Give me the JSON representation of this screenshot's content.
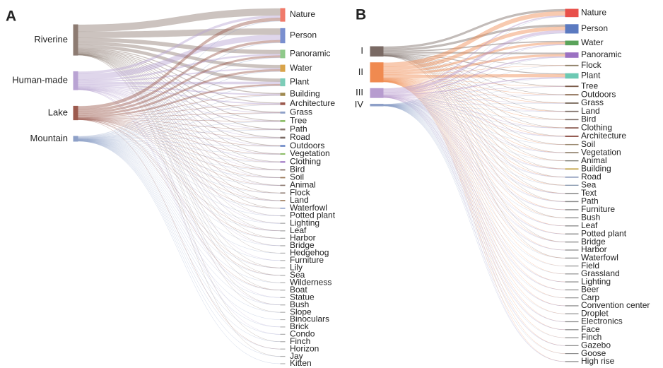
{
  "chart_data": [
    {
      "type": "sankey",
      "title": "A",
      "categories": [
        "Nature",
        "Person",
        "Panoramic",
        "Water",
        "Plant",
        "Building",
        "Architecture",
        "Grass",
        "Tree",
        "Path",
        "Road",
        "Outdoors",
        "Vegetation",
        "Clothing",
        "Bird",
        "Soil",
        "Animal",
        "Flock",
        "Land",
        "Waterfowl",
        "Potted plant",
        "Lighting",
        "Leaf",
        "Harbor",
        "Bridge",
        "Hedgehog",
        "Furniture",
        "Lily",
        "Sea",
        "Wilderness",
        "Boat",
        "Statue",
        "Bush",
        "Slope",
        "Binoculars",
        "Brick",
        "Condo",
        "Finch",
        "Horizon",
        "Jay",
        "Kitten"
      ],
      "category_colors": [
        "#f07a6a",
        "#7a8fcf",
        "#8fc98a",
        "#d9a44a",
        "#7dcdb8",
        "#a08a50",
        "#9c5a4e",
        "#8ea0c8",
        "#8fbf6a",
        "#8d7b72",
        "#7a6a64",
        "#5b7ac0",
        "#8fbf6a",
        "#9b72c2",
        "#8d7b72",
        "#9c7a5a",
        "#8d7b72",
        "#8d7b72",
        "#9c7a5a",
        "#8ea0c8",
        "#b0b0b0",
        "#b0b0b0",
        "#b0b0b0",
        "#b0b0b0",
        "#b0b0b0",
        "#b0b0b0",
        "#b0b0b0",
        "#b0b0b0",
        "#b0b0b0",
        "#b0b0b0",
        "#b0b0b0",
        "#b0b0b0",
        "#b0b0b0",
        "#b0b0b0",
        "#b0b0b0",
        "#b0b0b0",
        "#b0b0b0",
        "#b0b0b0",
        "#b0b0b0",
        "#b0b0b0",
        "#b0b0b0"
      ],
      "series": [
        {
          "name": "Riverine",
          "color": "#8d7b72",
          "values": [
            9,
            8,
            5,
            4,
            4,
            1,
            0.8,
            0.8,
            0.7,
            0.6,
            0.6,
            0.5,
            0.5,
            0.3,
            0.4,
            0.4,
            0.3,
            0.3,
            0.3,
            0.3,
            0.1,
            0.1,
            0.1,
            0.1,
            0.1,
            0.1,
            0,
            0.1,
            0.1,
            0.1,
            0.1,
            0,
            0.1,
            0.1,
            0,
            0,
            0,
            0.1,
            0,
            0.1,
            0
          ]
        },
        {
          "name": "Human-made",
          "color": "#b9a3d3",
          "values": [
            3,
            7,
            2,
            1.5,
            3,
            1.5,
            1.2,
            0.4,
            0.4,
            0.4,
            0.4,
            0.3,
            0.2,
            0.5,
            0.1,
            0.1,
            0.1,
            0,
            0.1,
            0,
            0.2,
            0.2,
            0.1,
            0,
            0.1,
            0,
            0.1,
            0,
            0,
            0,
            0,
            0.1,
            0.1,
            0,
            0,
            0.1,
            0.1,
            0,
            0,
            0,
            0
          ]
        },
        {
          "name": "Lake",
          "color": "#9c5a4e",
          "values": [
            4,
            3,
            2.5,
            2.5,
            2,
            0.4,
            0.3,
            0.3,
            0.3,
            0.2,
            0.2,
            0.2,
            0.2,
            0.1,
            0.2,
            0.1,
            0.1,
            0.1,
            0.1,
            0.1,
            0,
            0,
            0.1,
            0.1,
            0,
            0,
            0,
            0.1,
            0.1,
            0,
            0.1,
            0,
            0,
            0,
            0,
            0,
            0,
            0,
            0.1,
            0,
            0
          ]
        },
        {
          "name": "Mountain",
          "color": "#8ea0c8",
          "values": [
            0.5,
            0.5,
            0.5,
            0.3,
            0.3,
            0.2,
            0.2,
            0.2,
            0.2,
            0.2,
            0.2,
            0.2,
            0.1,
            0.1,
            0.1,
            0.1,
            0.1,
            0.1,
            0.1,
            0.1,
            0.1,
            0.1,
            0.1,
            0.1,
            0.1,
            0.1,
            0.1,
            0.1,
            0.1,
            0.1,
            0.1,
            0.1,
            0.1,
            0.1,
            0.1,
            0.1,
            0.1,
            0.1,
            0.1,
            0.1,
            0.1
          ]
        }
      ]
    },
    {
      "type": "sankey",
      "title": "B",
      "categories": [
        "Nature",
        "Person",
        "Water",
        "Panoramic",
        "Flock",
        "Plant",
        "Tree",
        "Outdoors",
        "Grass",
        "Land",
        "Bird",
        "Clothing",
        "Architecture",
        "Soil",
        "Vegetation",
        "Animal",
        "Building",
        "Road",
        "Sea",
        "Text",
        "Path",
        "Furniture",
        "Bush",
        "Leaf",
        "Potted plant",
        "Bridge",
        "Harbor",
        "Waterfowl",
        "Field",
        "Grassland",
        "Lighting",
        "Beer",
        "Carp",
        "Convention center",
        "Droplet",
        "Electronics",
        "Face",
        "Finch",
        "Gazebo",
        "Goose",
        "High rise"
      ],
      "category_colors": [
        "#e8504a",
        "#5b7ac0",
        "#5aa35a",
        "#9b72c2",
        "#8a7a60",
        "#6cc9b3",
        "#7a5b4a",
        "#8a6a50",
        "#6a5a4a",
        "#7a6a64",
        "#7a6a64",
        "#8a5a50",
        "#8a4a40",
        "#9a8a70",
        "#7a6a50",
        "#7a7a70",
        "#c0a040",
        "#7a8ab0",
        "#8a9ab0",
        "#8a8a8a",
        "#8a8a8a",
        "#8a8a8a",
        "#8a8a8a",
        "#8a8a8a",
        "#8a8a8a",
        "#8a8a8a",
        "#8a8a8a",
        "#8a8a8a",
        "#8a8a8a",
        "#8a8a8a",
        "#8a8a8a",
        "#8a8a8a",
        "#8a8a8a",
        "#8a8a8a",
        "#8a8a8a",
        "#8a8a8a",
        "#8a8a8a",
        "#8a8a8a",
        "#8a8a8a",
        "#8a8a8a",
        "#8a8a8a"
      ],
      "series": [
        {
          "name": "I",
          "color": "#7a6a64",
          "values": [
            3,
            3,
            1.5,
            2,
            0.3,
            1,
            0.3,
            0.3,
            0.2,
            0.2,
            0.2,
            0.2,
            0.2,
            0.1,
            0.1,
            0.1,
            0.1,
            0.1,
            0.1,
            0.1,
            0.1,
            0,
            0.1,
            0,
            0,
            0.1,
            0,
            0.1,
            0,
            0,
            0,
            0,
            0,
            0,
            0,
            0,
            0,
            0,
            0,
            0,
            0
          ]
        },
        {
          "name": "II",
          "color": "#f08a50",
          "values": [
            6,
            5,
            3,
            3,
            0.3,
            4,
            0.3,
            0.3,
            0.3,
            0.3,
            0.3,
            0.2,
            0.3,
            0.3,
            0.2,
            0.2,
            0.2,
            0.2,
            0.2,
            0.2,
            0.2,
            0.2,
            0.2,
            0.2,
            0.1,
            0.1,
            0.1,
            0.1,
            0.1,
            0.1,
            0.1,
            0.1,
            0.1,
            0.1,
            0.1,
            0.1,
            0.1,
            0.1,
            0.1,
            0.1,
            0.1
          ]
        },
        {
          "name": "III",
          "color": "#b79ccf",
          "values": [
            1.5,
            4,
            1,
            1.5,
            0,
            1.5,
            0.2,
            0.2,
            0.1,
            0.1,
            0,
            0.3,
            0.3,
            0,
            0.1,
            0,
            0.3,
            0.1,
            0,
            0.2,
            0.1,
            0.2,
            0,
            0.1,
            0.2,
            0.1,
            0.1,
            0,
            0,
            0,
            0.1,
            0.1,
            0,
            0.1,
            0,
            0.1,
            0.1,
            0,
            0.1,
            0,
            0.1
          ]
        },
        {
          "name": "IV",
          "color": "#8ea0c8",
          "values": [
            0.2,
            0.2,
            0.1,
            0.1,
            0.1,
            0.1,
            0.05,
            0.05,
            0.05,
            0.05,
            0.05,
            0.05,
            0.05,
            0.05,
            0.05,
            0.05,
            0.05,
            0.05,
            0.05,
            0.05,
            0.05,
            0.05,
            0.05,
            0.05,
            0.05,
            0.05,
            0.05,
            0.05,
            0.05,
            0.05,
            0.05,
            0.05,
            0.05,
            0.05,
            0.05,
            0.05,
            0.05,
            0.05,
            0.05,
            0.05,
            0.05
          ]
        }
      ]
    }
  ]
}
